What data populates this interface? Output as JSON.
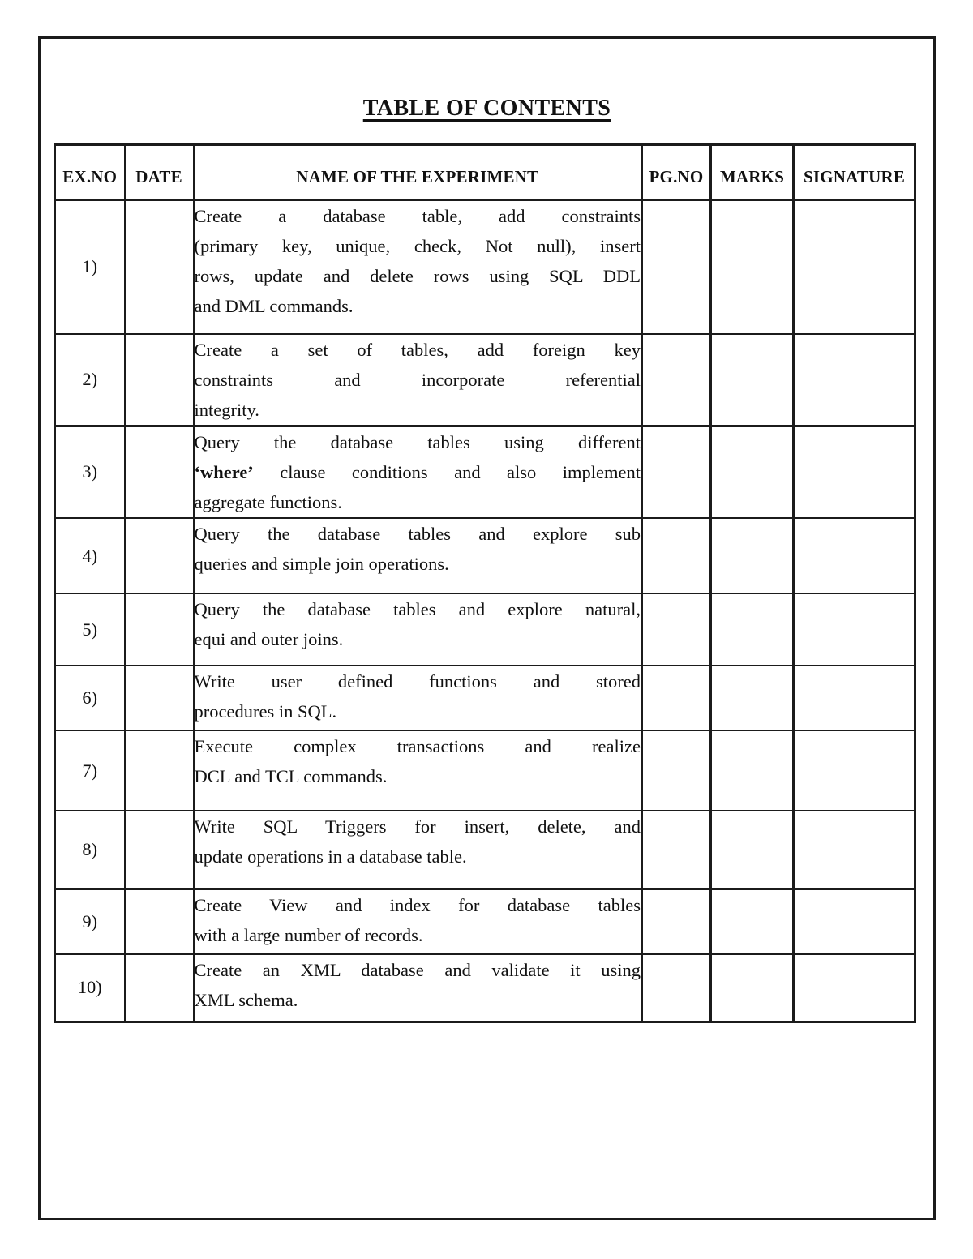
{
  "page": {
    "title": "TABLE OF CONTENTS"
  },
  "table": {
    "columns": [
      {
        "key": "exno",
        "label": "EX.NO"
      },
      {
        "key": "date",
        "label": "DATE"
      },
      {
        "key": "name",
        "label": "NAME OF THE EXPERIMENT"
      },
      {
        "key": "pgno",
        "label": "PG.NO"
      },
      {
        "key": "marks",
        "label": "MARKS"
      },
      {
        "key": "signature",
        "label": "SIGNATURE"
      }
    ],
    "rows": [
      {
        "exno": "1)",
        "date": "",
        "pgno": "",
        "marks": "",
        "signature": "",
        "name_lines": [
          "Create a database table, add constraints",
          "(primary key, unique, check, Not null), insert",
          "rows, update and delete rows using SQL DDL",
          "and DML commands."
        ]
      },
      {
        "exno": "2)",
        "date": "",
        "pgno": "",
        "marks": "",
        "signature": "",
        "name_lines": [
          "Create a set of tables, add foreign key",
          "constraints and incorporate referential",
          "integrity."
        ]
      },
      {
        "exno": "3)",
        "date": "",
        "pgno": "",
        "marks": "",
        "signature": "",
        "name_lines": [
          "Query the database tables using different",
          [
            {
              "text": "‘where’",
              "bold": true
            },
            {
              "text": " clause conditions and also implement",
              "bold": false
            }
          ],
          "aggregate functions."
        ]
      },
      {
        "exno": "4)",
        "date": "",
        "pgno": "",
        "marks": "",
        "signature": "",
        "name_lines": [
          "Query the database tables and explore sub",
          "queries and simple join operations."
        ]
      },
      {
        "exno": "5)",
        "date": "",
        "pgno": "",
        "marks": "",
        "signature": "",
        "name_lines": [
          "Query the database tables and explore natural,",
          "equi and outer joins."
        ]
      },
      {
        "exno": "6)",
        "date": "",
        "pgno": "",
        "marks": "",
        "signature": "",
        "name_lines": [
          "Write user defined functions and stored",
          "procedures in SQL."
        ]
      },
      {
        "exno": "7)",
        "date": "",
        "pgno": "",
        "marks": "",
        "signature": "",
        "name_lines": [
          "Execute complex transactions and realize",
          "DCL and TCL commands."
        ]
      },
      {
        "exno": "8)",
        "date": "",
        "pgno": "",
        "marks": "",
        "signature": "",
        "name_lines": [
          "Write SQL Triggers for insert, delete, and",
          "update operations in a database table."
        ]
      },
      {
        "exno": "9)",
        "date": "",
        "pgno": "",
        "marks": "",
        "signature": "",
        "name_lines": [
          "Create View and index for database tables",
          "with a large number of records."
        ]
      },
      {
        "exno": "10)",
        "date": "",
        "pgno": "",
        "marks": "",
        "signature": "",
        "name_lines": [
          "Create an XML database and validate it using",
          "XML schema."
        ]
      }
    ]
  }
}
